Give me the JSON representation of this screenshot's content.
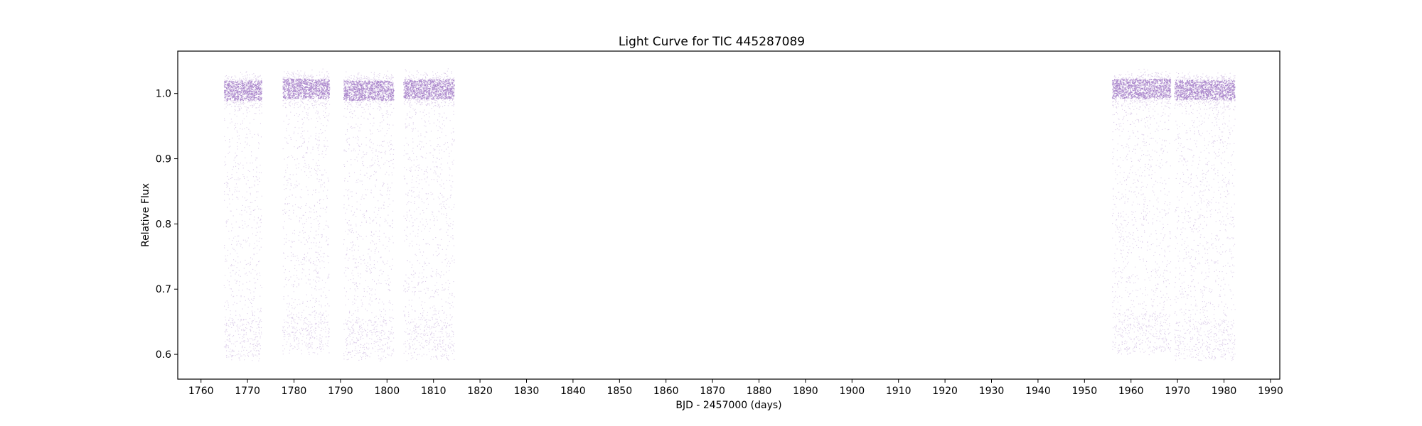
{
  "chart_data": {
    "type": "scatter",
    "title": "Light Curve for TIC 445287089",
    "xlabel": "BJD - 2457000 (days)",
    "ylabel": "Relative Flux",
    "xlim": [
      1755,
      1992
    ],
    "ylim": [
      0.562,
      1.065
    ],
    "grid": false,
    "legend": "none",
    "x_ticks": [
      1760,
      1770,
      1780,
      1790,
      1800,
      1810,
      1820,
      1830,
      1840,
      1850,
      1860,
      1870,
      1880,
      1890,
      1900,
      1910,
      1920,
      1930,
      1940,
      1950,
      1960,
      1970,
      1980,
      1990
    ],
    "y_ticks": [
      0.6,
      0.7,
      0.8,
      0.9,
      1.0
    ],
    "y_tick_labels": [
      "0.6",
      "0.7",
      "0.8",
      "0.9",
      "1.0"
    ],
    "series": [
      {
        "color": "#9467bd",
        "segments": [
          {
            "x_start": 1764.9,
            "x_end": 1773.0,
            "baseline": 1.005,
            "min_flux": 0.59
          },
          {
            "x_start": 1777.5,
            "x_end": 1787.6,
            "baseline": 1.008,
            "min_flux": 0.6
          },
          {
            "x_start": 1790.6,
            "x_end": 1801.4,
            "baseline": 1.005,
            "min_flux": 0.59
          },
          {
            "x_start": 1803.5,
            "x_end": 1814.4,
            "baseline": 1.007,
            "min_flux": 0.59
          },
          {
            "x_start": 1955.9,
            "x_end": 1968.5,
            "baseline": 1.008,
            "min_flux": 0.6
          },
          {
            "x_start": 1969.3,
            "x_end": 1982.3,
            "baseline": 1.006,
            "min_flux": 0.59
          }
        ]
      }
    ]
  }
}
